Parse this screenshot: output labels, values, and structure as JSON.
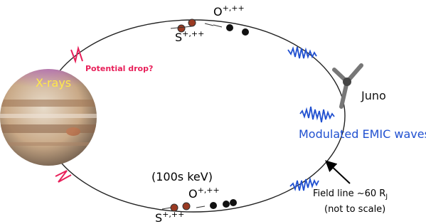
{
  "labels": {
    "potential_drop": "Potential drop?",
    "xrays": "X-rays",
    "juno": "Juno",
    "emic": "Modulated EMIC waves",
    "energy": "(100s keV)",
    "top_oxygen": {
      "symbol": "O",
      "charge": "+,++"
    },
    "top_sulfur": {
      "symbol": "S",
      "charge": "+,++"
    },
    "bottom_oxygen": {
      "symbol": "O",
      "charge": "+,++"
    },
    "bottom_sulfur": {
      "symbol": "S",
      "charge": "+,++"
    },
    "field_line": {
      "text": "Field line ~60 R",
      "subscript": "J"
    },
    "scale_note": "(not to scale)"
  }
}
